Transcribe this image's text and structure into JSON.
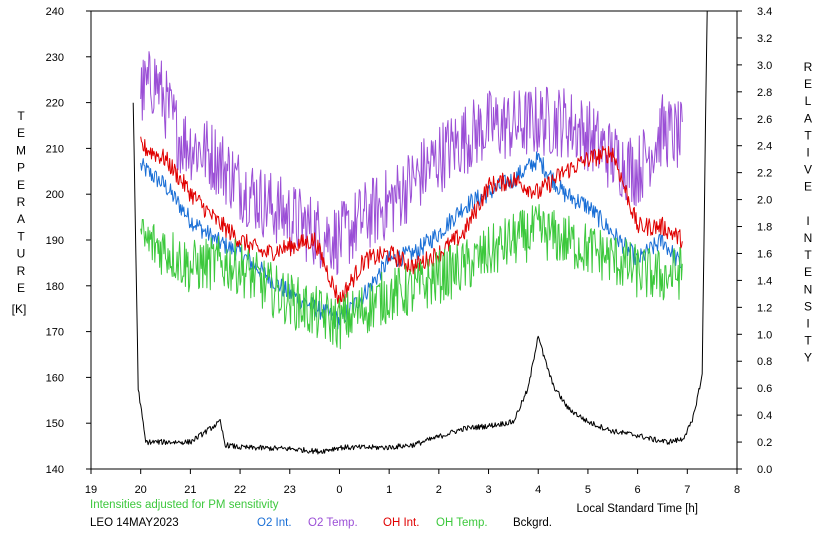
{
  "chart_data": {
    "type": "line",
    "left_axis": {
      "label": "TEMPERATURE",
      "unit": "[K]",
      "ylim": [
        140,
        240
      ],
      "ticks": [
        "140",
        "150",
        "160",
        "170",
        "180",
        "190",
        "200",
        "210",
        "220",
        "230",
        "240"
      ]
    },
    "right_axis": {
      "label": "RELATIVE INTENSITY",
      "ylim": [
        0.0,
        3.4
      ],
      "ticks": [
        "0.0",
        "0.2",
        "0.4",
        "0.6",
        "0.8",
        "1.0",
        "1.2",
        "1.4",
        "1.6",
        "1.8",
        "2.0",
        "2.2",
        "2.4",
        "2.6",
        "2.8",
        "3.0",
        "3.2",
        "3.4"
      ]
    },
    "x_axis": {
      "label": "Local Standard Time [h]",
      "range": [
        19,
        32
      ],
      "ticks": [
        "19",
        "20",
        "21",
        "22",
        "23",
        "0",
        "1",
        "2",
        "3",
        "4",
        "5",
        "6",
        "7",
        "8"
      ]
    },
    "note": "Intensities adjusted for PM sensitivity",
    "station": "LEO 14MAY2023",
    "colors": {
      "o2_int": "#1a6fd6",
      "o2_temp": "#9b4fd6",
      "oh_int": "#e00000",
      "oh_temp": "#3cc83c",
      "bckgrd": "#000000"
    },
    "series": [
      {
        "name": "O2 Int.",
        "axis": "right",
        "color": "#1a6fd6",
        "x": [
          20.0,
          20.5,
          21.0,
          21.5,
          22.0,
          22.5,
          23.0,
          23.5,
          24.0,
          24.5,
          25.0,
          25.5,
          26.0,
          26.5,
          27.0,
          27.5,
          28.0,
          28.5,
          29.0,
          29.5,
          30.0,
          30.5,
          30.9
        ],
        "values": [
          2.25,
          2.1,
          1.85,
          1.7,
          1.6,
          1.45,
          1.3,
          1.2,
          1.1,
          1.3,
          1.55,
          1.6,
          1.75,
          1.95,
          2.05,
          2.15,
          2.3,
          2.05,
          1.95,
          1.75,
          1.55,
          1.7,
          1.5
        ]
      },
      {
        "name": "O2 Temp.",
        "axis": "left",
        "color": "#9b4fd6",
        "x": [
          20.0,
          20.3,
          20.8,
          21.5,
          22.0,
          22.5,
          23.0,
          23.5,
          24.0,
          24.5,
          25.0,
          25.5,
          26.0,
          26.5,
          27.0,
          27.5,
          28.0,
          28.5,
          29.0,
          29.5,
          30.0,
          30.5,
          30.9
        ],
        "values": [
          222,
          225,
          212,
          208,
          202,
          198,
          195,
          192,
          190,
          195,
          198,
          203,
          208,
          212,
          215,
          215,
          216,
          216,
          213,
          208,
          205,
          214,
          212
        ]
      },
      {
        "name": "OH Int.",
        "axis": "right",
        "color": "#e00000",
        "x": [
          20.0,
          20.5,
          21.0,
          21.5,
          22.0,
          22.5,
          23.0,
          23.5,
          24.0,
          24.5,
          25.0,
          25.5,
          26.0,
          26.5,
          27.0,
          27.5,
          28.0,
          28.5,
          29.0,
          29.5,
          30.0,
          30.5,
          30.9
        ],
        "values": [
          2.4,
          2.3,
          2.05,
          1.85,
          1.7,
          1.6,
          1.65,
          1.7,
          1.25,
          1.55,
          1.6,
          1.5,
          1.6,
          1.75,
          2.1,
          2.15,
          2.05,
          2.2,
          2.3,
          2.35,
          1.8,
          1.8,
          1.7
        ]
      },
      {
        "name": "OH Temp.",
        "axis": "left",
        "color": "#3cc83c",
        "x": [
          20.0,
          20.5,
          21.0,
          21.5,
          22.0,
          22.5,
          23.0,
          23.5,
          24.0,
          24.5,
          25.0,
          25.5,
          26.0,
          26.5,
          27.0,
          27.5,
          28.0,
          28.5,
          29.0,
          29.5,
          30.0,
          30.5,
          30.9
        ],
        "values": [
          190,
          188,
          184,
          185,
          184,
          180,
          177,
          174,
          172,
          175,
          178,
          179,
          182,
          184,
          187,
          190,
          192,
          190,
          188,
          186,
          183,
          182,
          183
        ]
      },
      {
        "name": "Bckgrd.",
        "axis": "right",
        "color": "#000000",
        "x": [
          19.85,
          19.95,
          20.1,
          20.4,
          21.0,
          21.6,
          21.7,
          22.0,
          23.0,
          23.6,
          24.0,
          25.0,
          25.5,
          26.0,
          26.5,
          27.0,
          27.5,
          27.8,
          28.0,
          28.1,
          28.3,
          28.6,
          29.0,
          29.5,
          30.0,
          30.3,
          30.6,
          30.9,
          31.1,
          31.3,
          31.4
        ],
        "values": [
          2.72,
          0.6,
          0.2,
          0.2,
          0.2,
          0.35,
          0.18,
          0.16,
          0.15,
          0.13,
          0.16,
          0.16,
          0.18,
          0.24,
          0.3,
          0.32,
          0.35,
          0.6,
          1.0,
          0.85,
          0.62,
          0.45,
          0.35,
          0.28,
          0.25,
          0.22,
          0.2,
          0.22,
          0.35,
          0.7,
          3.5
        ]
      }
    ]
  }
}
